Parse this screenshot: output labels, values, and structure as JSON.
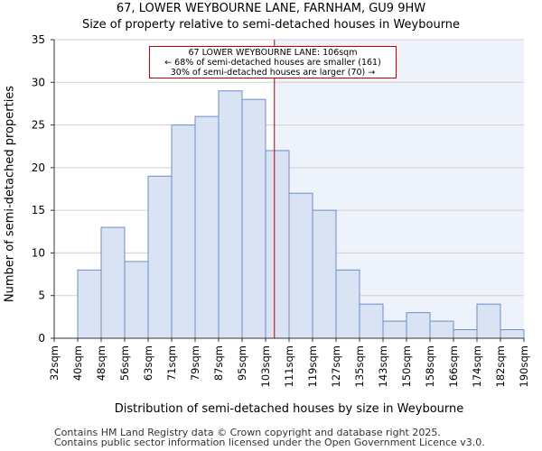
{
  "title_line1": "67, LOWER WEYBOURNE LANE, FARNHAM, GU9 9HW",
  "title_line2": "Size of property relative to semi-detached houses in Weybourne",
  "footer_line1": "Contains HM Land Registry data © Crown copyright and database right 2025.",
  "footer_line2": "Contains public sector information licensed under the Open Government Licence v3.0.",
  "annotation": {
    "line1": "67 LOWER WEYBOURNE LANE: 106sqm",
    "line2": "← 68% of semi-detached houses are smaller (161)",
    "line3": "30% of semi-detached houses are larger (70) →"
  },
  "colors": {
    "bar_fill": "#dae3f4",
    "bar_stroke": "#6b8fc6",
    "marker": "#c00000",
    "highlight_bg": "#eef2fb"
  },
  "chart_data": {
    "type": "bar",
    "xlabel": "Distribution of semi-detached houses by size in Weybourne",
    "ylabel": "Number of semi-detached properties",
    "bin_labels": [
      "32sqm",
      "40sqm",
      "48sqm",
      "56sqm",
      "63sqm",
      "71sqm",
      "79sqm",
      "87sqm",
      "95sqm",
      "103sqm",
      "111sqm",
      "119sqm",
      "127sqm",
      "135sqm",
      "143sqm",
      "150sqm",
      "158sqm",
      "166sqm",
      "174sqm",
      "182sqm",
      "190sqm"
    ],
    "values": [
      0,
      8,
      13,
      9,
      19,
      25,
      26,
      29,
      28,
      22,
      17,
      15,
      8,
      4,
      2,
      3,
      2,
      1,
      4,
      1
    ],
    "ylim": [
      0,
      35
    ],
    "yticks": [
      0,
      5,
      10,
      15,
      20,
      25,
      30,
      35
    ],
    "property_size_sqm": 106,
    "grid": true
  }
}
